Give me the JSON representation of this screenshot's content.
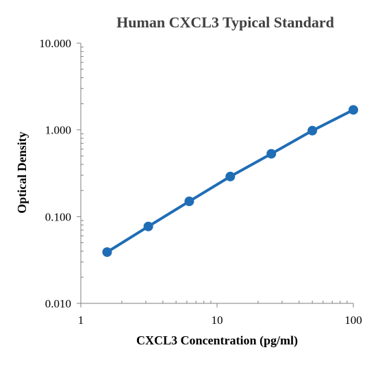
{
  "chart_data": {
    "type": "line",
    "title": "Human CXCL3 Typical Standard",
    "xlabel": "CXCL3 Concentration (pg/ml)",
    "ylabel": "Optical Density",
    "x_scale": "log",
    "y_scale": "log",
    "xlim": [
      1,
      100
    ],
    "ylim": [
      0.01,
      10
    ],
    "x_tick_labels": [
      "1",
      "10",
      "100"
    ],
    "y_tick_labels": [
      "10.000",
      "1.000",
      "0.100",
      "0.010"
    ],
    "grid": false,
    "legend": "none",
    "series": [
      {
        "x": [
          1.56,
          3.13,
          6.25,
          12.5,
          25,
          50,
          100
        ],
        "y": [
          0.039,
          0.077,
          0.15,
          0.29,
          0.53,
          0.98,
          1.7
        ],
        "color": "#1f6db5"
      }
    ]
  }
}
